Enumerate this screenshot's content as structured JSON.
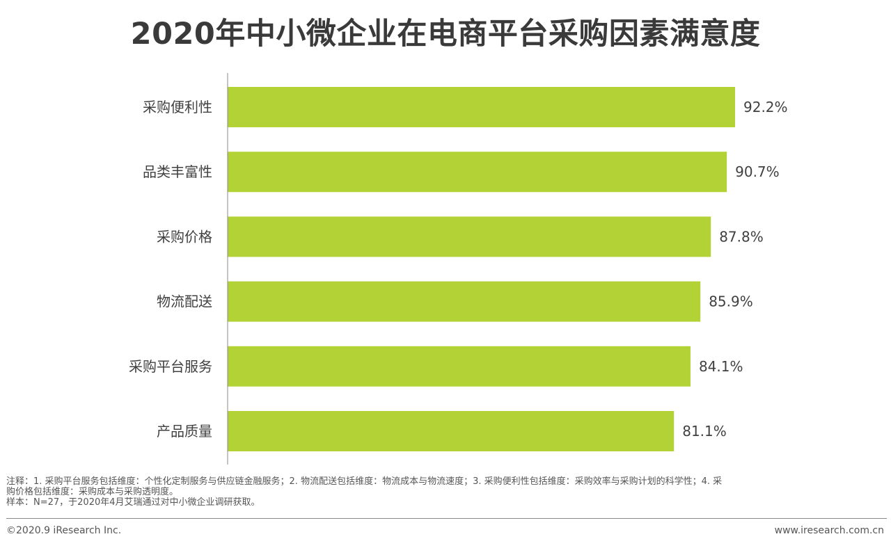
{
  "title": "2020年中小微企业在电商平台采购因素满意度",
  "chart_data": {
    "type": "bar",
    "orientation": "horizontal",
    "title": "2020年中小微企业在电商平台采购因素满意度",
    "categories": [
      "采购便利性",
      "品类丰富性",
      "采购价格",
      "物流配送",
      "采购平台服务",
      "产品质量"
    ],
    "values": [
      92.2,
      90.7,
      87.8,
      85.9,
      84.1,
      81.1
    ],
    "value_labels": [
      "92.2%",
      "90.7%",
      "87.8%",
      "85.9%",
      "84.1%",
      "81.1%"
    ],
    "unit": "%",
    "xlim": [
      0,
      100
    ],
    "bar_color": "#b2d235",
    "grid": false,
    "legend": "none"
  },
  "notes": {
    "line1": "注释：1. 采购平台服务包括维度：个性化定制服务与供应链金融服务；2. 物流配送包括维度：物流成本与物流速度；3. 采购便利性包括维度：采购效率与采购计划的科学性；4. 采",
    "line2": "购价格包括维度：采购成本与采购透明度。",
    "line3": "样本：N=27，于2020年4月艾瑞通过对中小微企业调研获取。"
  },
  "footer": {
    "copyright": "©2020.9 iResearch Inc.",
    "website": "www.iresearch.com.cn"
  }
}
